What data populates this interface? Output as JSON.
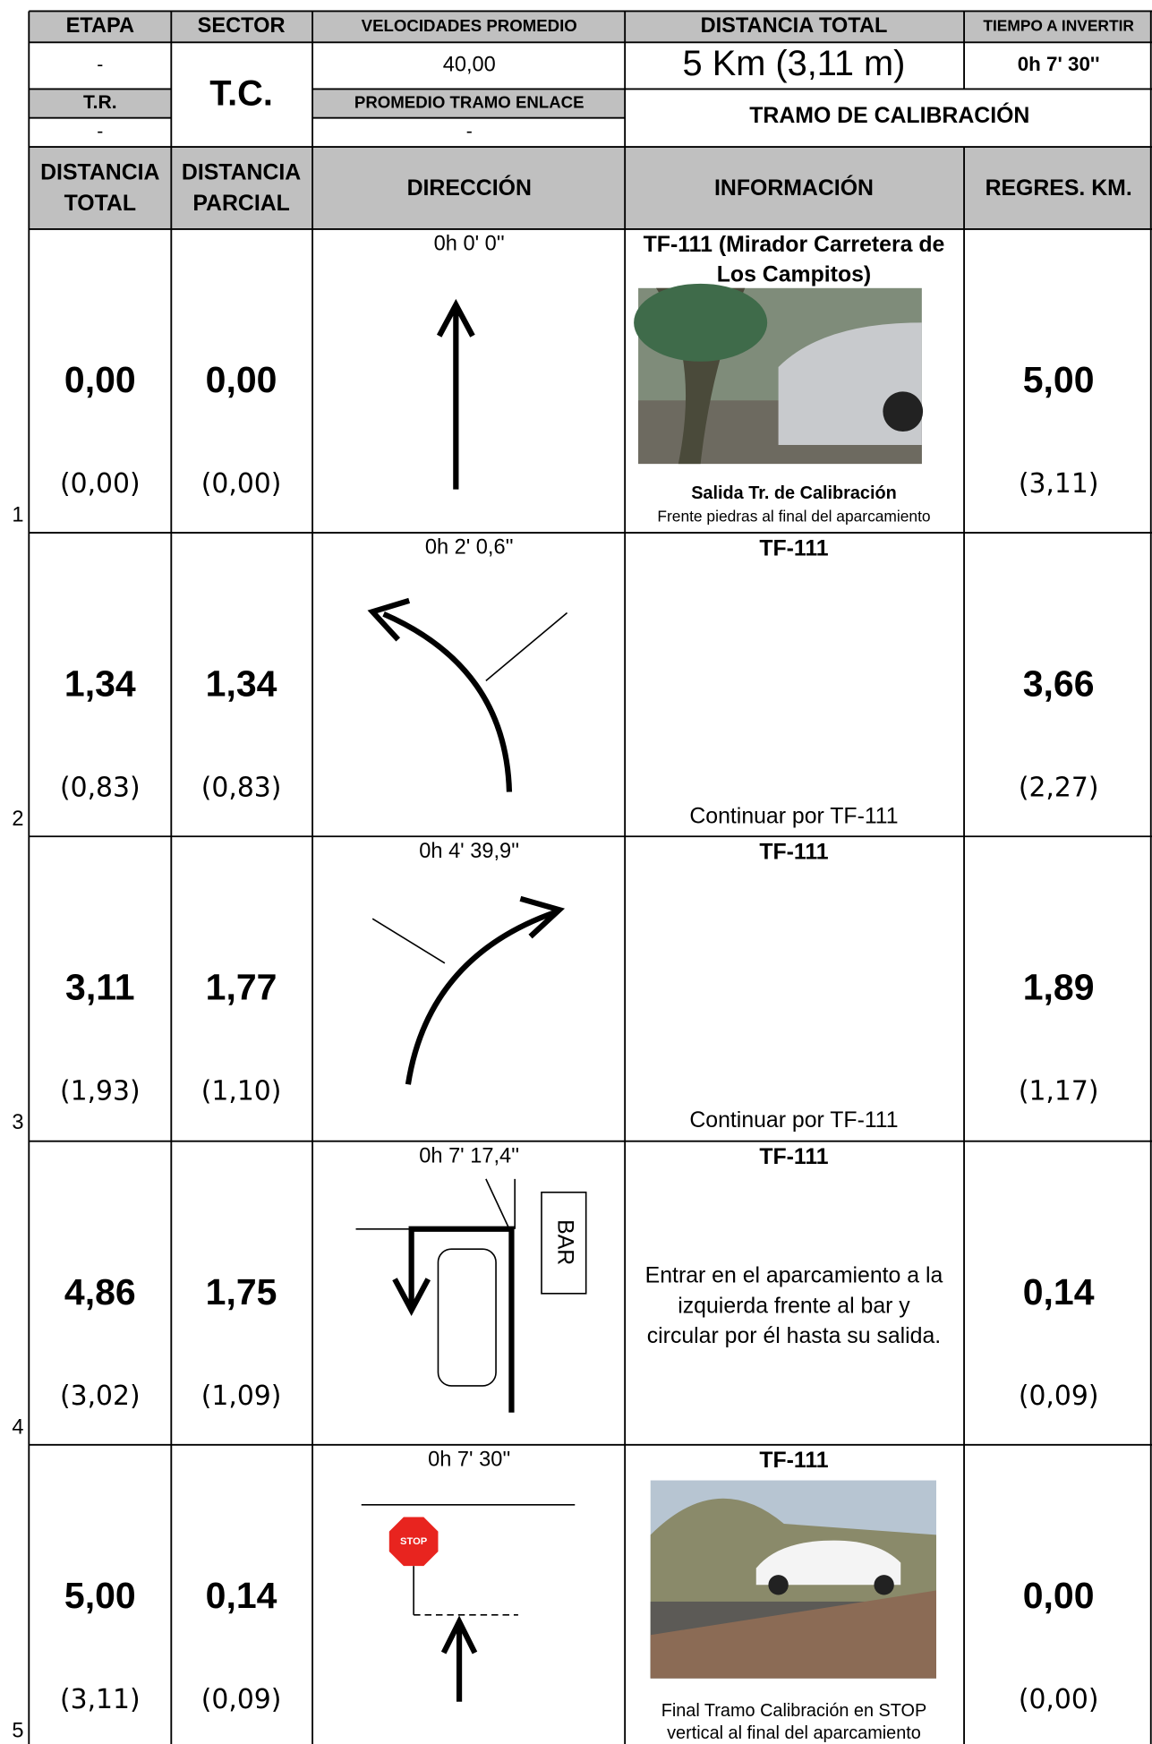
{
  "header": {
    "labels": [
      "ETAPA",
      "SECTOR",
      "VELOCIDADES PROMEDIO",
      "DISTANCIA TOTAL",
      "TIEMPO A INVERTIR"
    ],
    "etapa": "-",
    "sector": "T.C.",
    "velocidad": "40,00",
    "distancia": "5 Km (3,11 m)",
    "tiempo": "0h 7' 30''",
    "tr_label": "T.R.",
    "tr_value": "-",
    "enlace_label": "PROMEDIO TRAMO ENLACE",
    "enlace_value": "-",
    "tramo": "TRAMO DE CALIBRACIÓN"
  },
  "columns": [
    [
      "DISTANCIA",
      "TOTAL"
    ],
    [
      "DISTANCIA",
      "PARCIAL"
    ],
    [
      "DIRECCIÓN"
    ],
    [
      "INFORMACIÓN"
    ],
    [
      "REGRES. KM."
    ]
  ],
  "rows": [
    {
      "number": "1",
      "time": "0h 0' 0''",
      "total": "0,00",
      "total_mi": "(0,00)",
      "partial": "0,00",
      "partial_mi": "(0,00)",
      "road": [
        "TF-111 (Mirador Carretera de",
        "Los Campitos)"
      ],
      "notes": [
        "Salida Tr. de Calibración",
        "Frente piedras al final del aparcamiento"
      ],
      "regres": "5,00",
      "regres_mi": "(3,11)"
    },
    {
      "number": "2",
      "time": "0h 2' 0,6''",
      "total": "1,34",
      "total_mi": "(0,83)",
      "partial": "1,34",
      "partial_mi": "(0,83)",
      "road": [
        "TF-111"
      ],
      "notes": [
        "Continuar por TF-111"
      ],
      "regres": "3,66",
      "regres_mi": "(2,27)"
    },
    {
      "number": "3",
      "time": "0h 4' 39,9''",
      "total": "3,11",
      "total_mi": "(1,93)",
      "partial": "1,77",
      "partial_mi": "(1,10)",
      "road": [
        "TF-111"
      ],
      "notes": [
        "Continuar por TF-111"
      ],
      "regres": "1,89",
      "regres_mi": "(1,17)"
    },
    {
      "number": "4",
      "time": "0h 7' 17,4''",
      "total": "4,86",
      "total_mi": "(3,02)",
      "partial": "1,75",
      "partial_mi": "(1,09)",
      "road": [
        "TF-111"
      ],
      "notes": [
        "Entrar en el aparcamiento a la",
        "izquierda frente al bar y",
        "circular por él hasta su salida."
      ],
      "regres": "0,14",
      "regres_mi": "(0,09)",
      "sign": "BAR"
    },
    {
      "number": "5",
      "time": "0h 7' 30''",
      "total": "5,00",
      "total_mi": "(3,11)",
      "partial": "0,14",
      "partial_mi": "(0,09)",
      "road": [
        "TF-111"
      ],
      "notes": [
        "Final Tramo Calibración en STOP",
        "vertical al final del aparcamiento"
      ],
      "regres": "0,00",
      "regres_mi": "(0,00)",
      "sign": "STOP"
    }
  ]
}
